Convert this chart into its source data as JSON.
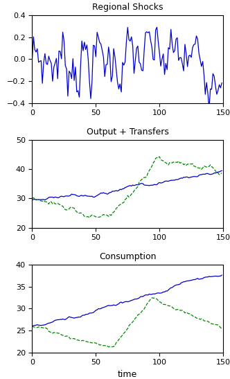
{
  "title1": "Regional Shocks",
  "title2": "Output + Transfers",
  "title3": "Consumption",
  "xlabel": "time",
  "t_max": 150,
  "color_solid": "#0000CC",
  "color_dashed": "#008800",
  "linewidth": 0.9,
  "ylim1": [
    -0.4,
    0.4
  ],
  "yticks1": [
    -0.4,
    -0.2,
    0.0,
    0.2,
    0.4
  ],
  "ylim2": [
    20,
    50
  ],
  "yticks2": [
    20,
    30,
    40,
    50
  ],
  "ylim3": [
    20,
    40
  ],
  "yticks3": [
    20,
    25,
    30,
    35,
    40
  ],
  "xlim": [
    0,
    150
  ],
  "xticks": [
    0,
    50,
    100,
    150
  ]
}
